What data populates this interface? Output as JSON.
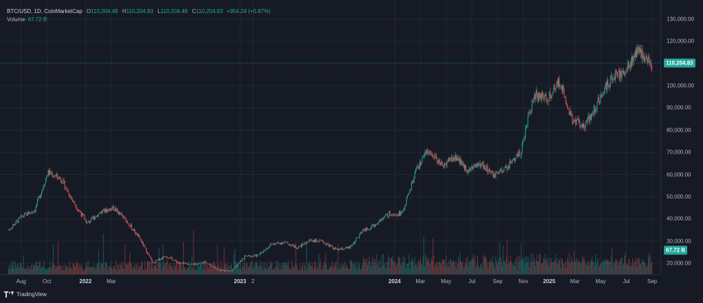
{
  "legend": {
    "symbol": "BTC/USD, 1D, CoinMarketCap",
    "open_label": "O",
    "open": "110,204.48",
    "high_label": "H",
    "high": "110,204.83",
    "low_label": "L",
    "low": "110,204.48",
    "close_label": "C",
    "close": "110,204.83",
    "change": "+954.24 (+0.87%)",
    "volume_label": "Volume",
    "volume": "67.72 B"
  },
  "price_axis": {
    "ticks": [
      "130,000.00",
      "120,000.00",
      "100,000.00",
      "90,000.00",
      "80,000.00",
      "70,000.00",
      "60,000.00",
      "50,000.00",
      "40,000.00",
      "30,000.00",
      "20,000.00"
    ],
    "tick_values": [
      130000,
      120000,
      100000,
      90000,
      80000,
      70000,
      60000,
      50000,
      40000,
      30000,
      20000
    ],
    "current_price_label": "110,204.83",
    "current_price": 110204.83,
    "volume_badge": "67.72 B"
  },
  "time_axis": {
    "labels": [
      "Aug",
      "Oct",
      "2022",
      "Mar",
      "2023",
      "2",
      "2024",
      "Mar",
      "May",
      "Jul",
      "Sep",
      "Nov",
      "2025",
      "Mar",
      "May",
      "Jul",
      "Sep"
    ],
    "bold": [
      false,
      false,
      true,
      false,
      true,
      false,
      true,
      false,
      false,
      false,
      false,
      false,
      true,
      false,
      false,
      false,
      false
    ],
    "months_index": [
      1,
      3,
      6,
      8,
      18,
      19,
      30,
      32,
      34,
      36,
      38,
      40,
      42,
      44,
      46,
      48,
      50
    ]
  },
  "footer": {
    "brand": "TradingView",
    "logo_icon": "tradingview-logo-icon"
  },
  "colors": {
    "up": "#26a69a",
    "down": "#ef5350",
    "price_line": "#26a69a",
    "grid": "#232733",
    "background": "#161a25"
  },
  "chart_data": {
    "type": "candlestick",
    "x_unit": "month",
    "x": [
      "2021-07",
      "2021-08",
      "2021-09",
      "2021-10",
      "2021-11",
      "2021-12",
      "2022-01",
      "2022-02",
      "2022-03",
      "2022-04",
      "2022-05",
      "2022-06",
      "2022-07",
      "2022-08",
      "2022-09",
      "2022-10",
      "2022-11",
      "2022-12",
      "2023-01",
      "2023-02",
      "2023-03",
      "2023-04",
      "2023-05",
      "2023-06",
      "2023-07",
      "2023-08",
      "2023-09",
      "2023-10",
      "2023-11",
      "2023-12",
      "2024-01",
      "2024-02",
      "2024-03",
      "2024-04",
      "2024-05",
      "2024-06",
      "2024-07",
      "2024-08",
      "2024-09",
      "2024-10",
      "2024-11",
      "2024-12",
      "2025-01",
      "2025-02",
      "2025-03",
      "2025-04",
      "2025-05",
      "2025-06",
      "2025-07",
      "2025-08"
    ],
    "close": [
      35000,
      41000,
      44000,
      61000,
      58000,
      47000,
      38000,
      43000,
      45000,
      39000,
      31000,
      20000,
      23500,
      20000,
      19500,
      20500,
      17000,
      16500,
      23000,
      23500,
      28500,
      29500,
      27000,
      30500,
      29500,
      26000,
      27000,
      34500,
      37500,
      42500,
      42500,
      61000,
      71000,
      64000,
      68000,
      62000,
      65000,
      59000,
      63500,
      70000,
      96000,
      94000,
      102000,
      84000,
      82500,
      94000,
      104000,
      107000,
      116000,
      110000
    ],
    "ylim": [
      15000,
      132000
    ],
    "volume_series_name": "Volume"
  }
}
